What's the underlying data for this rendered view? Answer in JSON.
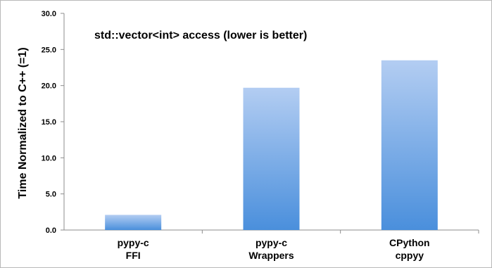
{
  "chart_data": {
    "type": "bar",
    "title": "std::vector<int> access (lower is better)",
    "xlabel": "",
    "ylabel": "Time Normalized to C++ (=1)",
    "ylim": [
      0,
      30
    ],
    "yticks": [
      "0.0",
      "5.0",
      "10.0",
      "15.0",
      "20.0",
      "25.0",
      "30.0"
    ],
    "categories": [
      [
        "pypy-c",
        "FFI"
      ],
      [
        "pypy-c",
        "Wrappers"
      ],
      [
        "CPython",
        "cppyy"
      ]
    ],
    "values": [
      2.1,
      19.7,
      23.5
    ],
    "grid": false,
    "bar_color_top": "#b3cdf2",
    "bar_color_bottom": "#4a8fdc"
  }
}
